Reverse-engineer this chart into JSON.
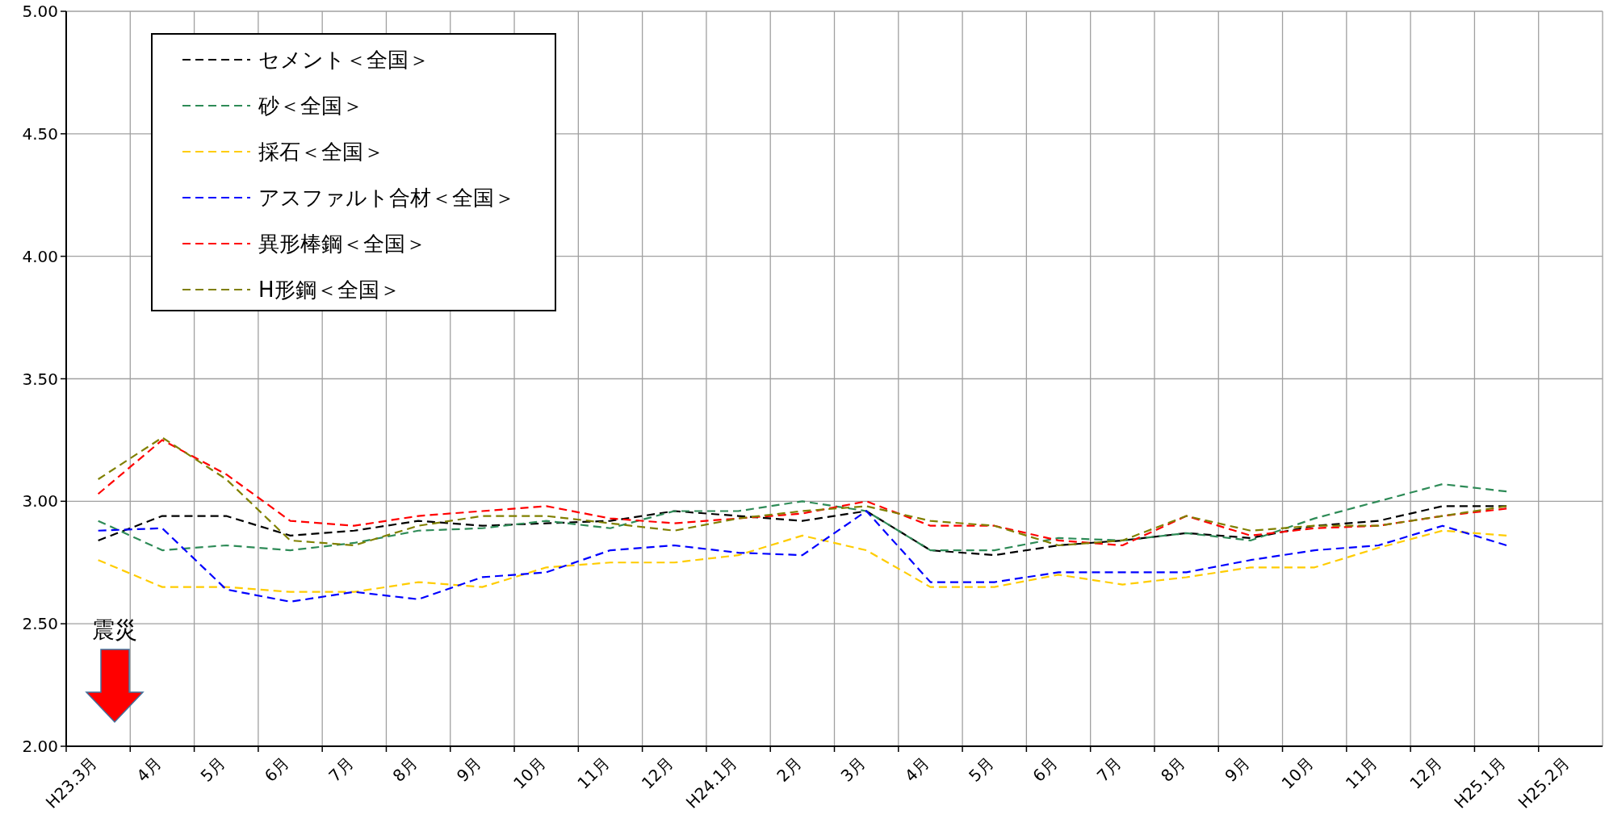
{
  "chart_data": {
    "type": "line",
    "categories": [
      "H23.3月",
      "4月",
      "5月",
      "6月",
      "7月",
      "8月",
      "9月",
      "10月",
      "11月",
      "12月",
      "H24.1月",
      "2月",
      "3月",
      "4月",
      "5月",
      "6月",
      "7月",
      "8月",
      "9月",
      "10月",
      "11月",
      "12月",
      "H25.1月",
      "H25.2月"
    ],
    "series": [
      {
        "name": "セメント＜全国＞",
        "color": "#000000",
        "values": [
          2.84,
          2.94,
          2.94,
          2.86,
          2.88,
          2.92,
          2.9,
          2.91,
          2.92,
          2.96,
          2.94,
          2.92,
          2.96,
          2.8,
          2.78,
          2.82,
          2.84,
          2.87,
          2.85,
          2.9,
          2.92,
          2.98,
          2.98,
          null
        ]
      },
      {
        "name": "砂＜全国＞",
        "color": "#2e8b57",
        "values": [
          2.92,
          2.8,
          2.82,
          2.8,
          2.83,
          2.88,
          2.89,
          2.92,
          2.89,
          2.96,
          2.96,
          3.0,
          2.96,
          2.8,
          2.8,
          2.85,
          2.84,
          2.87,
          2.84,
          2.93,
          3.0,
          3.07,
          3.04,
          null
        ]
      },
      {
        "name": "採石＜全国＞",
        "color": "#ffcc00",
        "values": [
          2.76,
          2.65,
          2.65,
          2.63,
          2.63,
          2.67,
          2.65,
          2.73,
          2.75,
          2.75,
          2.78,
          2.86,
          2.8,
          2.65,
          2.65,
          2.7,
          2.66,
          2.69,
          2.73,
          2.73,
          2.81,
          2.88,
          2.86,
          null
        ]
      },
      {
        "name": "アスファルト合材＜全国＞",
        "color": "#0000ff",
        "values": [
          2.88,
          2.89,
          2.64,
          2.59,
          2.63,
          2.6,
          2.69,
          2.71,
          2.8,
          2.82,
          2.79,
          2.78,
          2.96,
          2.67,
          2.67,
          2.71,
          2.71,
          2.71,
          2.76,
          2.8,
          2.82,
          2.9,
          2.82,
          null
        ]
      },
      {
        "name": "異形棒鋼＜全国＞",
        "color": "#ff0000",
        "values": [
          3.03,
          3.25,
          3.11,
          2.92,
          2.9,
          2.94,
          2.96,
          2.98,
          2.93,
          2.91,
          2.93,
          2.95,
          3.0,
          2.9,
          2.9,
          2.84,
          2.82,
          2.94,
          2.86,
          2.89,
          2.9,
          2.94,
          2.97,
          null
        ]
      },
      {
        "name": "H形鋼＜全国＞",
        "color": "#808000",
        "values": [
          3.09,
          3.26,
          3.09,
          2.84,
          2.82,
          2.9,
          2.94,
          2.94,
          2.91,
          2.88,
          2.93,
          2.96,
          2.98,
          2.92,
          2.9,
          2.82,
          2.84,
          2.94,
          2.88,
          2.9,
          2.9,
          2.94,
          2.98,
          null
        ]
      }
    ],
    "ylim": [
      2,
      5
    ],
    "yticks": [
      {
        "value": 2,
        "label": "2.00"
      },
      {
        "value": 2.5,
        "label": "2.50"
      },
      {
        "value": 3,
        "label": "3.00"
      },
      {
        "value": 3.5,
        "label": "3.50"
      },
      {
        "value": 4,
        "label": "4.00"
      },
      {
        "value": 4.5,
        "label": "4.50"
      },
      {
        "value": 5,
        "label": "5.00"
      }
    ],
    "grid": true,
    "legend": "top left",
    "line_style": "dashed",
    "marker": "none",
    "annotations": [
      "震災"
    ]
  }
}
